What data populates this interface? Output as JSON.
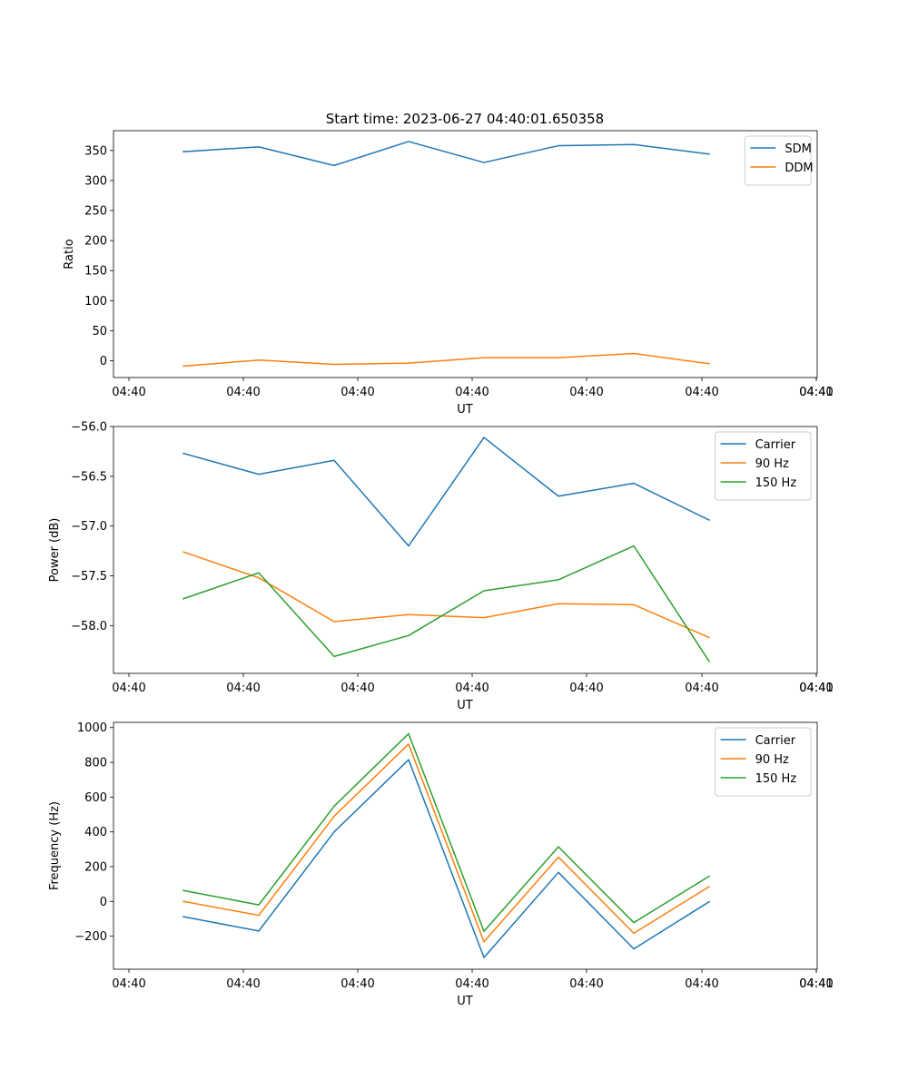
{
  "figure": {
    "title": "Start time: 2023-06-27 04:40:01.650358"
  },
  "chart_data": [
    {
      "type": "line",
      "xlabel": "UT",
      "ylabel": "Ratio",
      "x_tick_labels": [
        "04:40",
        "04:40",
        "04:40",
        "04:40",
        "04:40",
        "04:40",
        "04:40",
        "04:41"
      ],
      "ylim": [
        -28,
        383
      ],
      "yticks": [
        0,
        50,
        100,
        150,
        200,
        250,
        300,
        350
      ],
      "ytick_labels": [
        "0",
        "50",
        "100",
        "150",
        "200",
        "250",
        "300",
        "350"
      ],
      "legend_position": "top-right",
      "series": [
        {
          "name": "SDM",
          "color": "#1f77b4",
          "values": [
            348,
            356,
            325,
            365,
            330,
            358,
            360,
            344
          ]
        },
        {
          "name": "DDM",
          "color": "#ff7f0e",
          "values": [
            -9,
            1,
            -6,
            -4,
            5,
            5,
            12,
            -5
          ]
        }
      ]
    },
    {
      "type": "line",
      "xlabel": "UT",
      "ylabel": "Power (dB)",
      "x_tick_labels": [
        "04:40",
        "04:40",
        "04:40",
        "04:40",
        "04:40",
        "04:40",
        "04:40",
        "04:41"
      ],
      "ylim": [
        -58.48,
        -56.0
      ],
      "yticks": [
        -56.0,
        -56.5,
        -57.0,
        -57.5,
        -58.0
      ],
      "ytick_labels": [
        "−56.0",
        "−56.5",
        "−57.0",
        "−57.5",
        "−58.0"
      ],
      "legend_position": "top-right",
      "series": [
        {
          "name": "Carrier",
          "color": "#1f77b4",
          "values": [
            -56.27,
            -56.48,
            -56.34,
            -57.2,
            -56.11,
            -56.7,
            -56.57,
            -56.94
          ]
        },
        {
          "name": "90 Hz",
          "color": "#ff7f0e",
          "values": [
            -57.26,
            -57.52,
            -57.96,
            -57.89,
            -57.92,
            -57.78,
            -57.79,
            -58.12
          ]
        },
        {
          "name": "150 Hz",
          "color": "#2ca02c",
          "values": [
            -57.73,
            -57.47,
            -58.31,
            -58.1,
            -57.65,
            -57.54,
            -57.2,
            -58.36
          ]
        }
      ]
    },
    {
      "type": "line",
      "xlabel": "UT",
      "ylabel": "Frequency (Hz)",
      "x_tick_labels": [
        "04:40",
        "04:40",
        "04:40",
        "04:40",
        "04:40",
        "04:40",
        "04:40",
        "04:41"
      ],
      "ylim": [
        -390,
        1030
      ],
      "yticks": [
        -200,
        0,
        200,
        400,
        600,
        800,
        1000
      ],
      "ytick_labels": [
        "−200",
        "0",
        "200",
        "400",
        "600",
        "800",
        "1000"
      ],
      "legend_position": "top-right",
      "series": [
        {
          "name": "Carrier",
          "color": "#1f77b4",
          "values": [
            -88,
            -170,
            400,
            815,
            -323,
            167,
            -273,
            -2
          ]
        },
        {
          "name": "90 Hz",
          "color": "#ff7f0e",
          "values": [
            0,
            -80,
            490,
            905,
            -232,
            255,
            -183,
            85
          ]
        },
        {
          "name": "150 Hz",
          "color": "#2ca02c",
          "values": [
            63,
            -20,
            548,
            965,
            -172,
            314,
            -122,
            145
          ]
        }
      ]
    }
  ]
}
